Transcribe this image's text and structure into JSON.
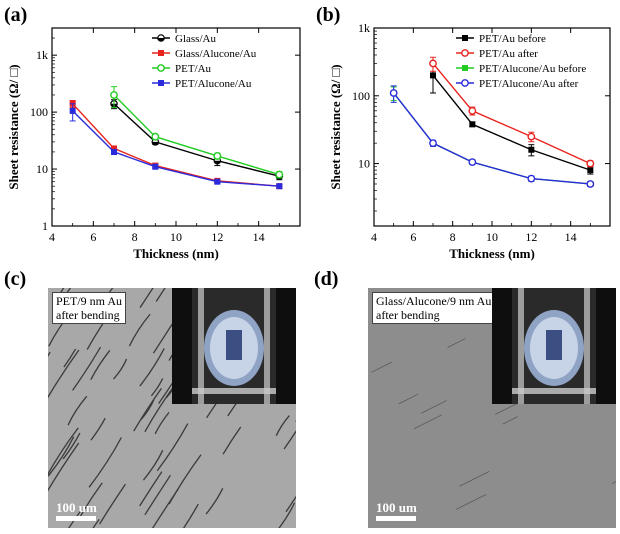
{
  "panels": {
    "a": "(a)",
    "b": "(b)",
    "c": "(c)",
    "d": "(d)"
  },
  "chart_data": [
    {
      "type": "line",
      "panel": "(a)",
      "title": "",
      "xlabel": "Thickness (nm)",
      "ylabel": "Sheet resistance (Ω/ □)",
      "yscale": "log",
      "xlim": [
        4,
        16
      ],
      "ylim": [
        1,
        3000
      ],
      "xticks": [
        4,
        6,
        8,
        10,
        12,
        14
      ],
      "yticks": [
        {
          "v": 1,
          "label": "1"
        },
        {
          "v": 10,
          "label": "10"
        },
        {
          "v": 100,
          "label": "100"
        },
        {
          "v": 1000,
          "label": "1k"
        }
      ],
      "legend_position": "top-right",
      "series": [
        {
          "name": "Glass/Au",
          "color": "#000000",
          "marker": "half-circle",
          "x": [
            7,
            9,
            12,
            15
          ],
          "y": [
            140,
            30,
            14,
            7.5
          ],
          "err": [
            25,
            3,
            2.5,
            1
          ]
        },
        {
          "name": "Glass/Alucone/Au",
          "color": "#e8231f",
          "marker": "square",
          "x": [
            5,
            7,
            9,
            12,
            15
          ],
          "y": [
            140,
            23,
            11.5,
            6.2,
            5
          ],
          "err": [
            20,
            2,
            1,
            0.4,
            0.4
          ]
        },
        {
          "name": "PET/Au",
          "color": "#22cc22",
          "marker": "circle-open",
          "x": [
            7,
            9,
            12,
            15
          ],
          "y": [
            200,
            37,
            17,
            8
          ],
          "err": [
            80,
            4,
            2,
            1
          ]
        },
        {
          "name": "PET/Alucone/Au",
          "color": "#2b2bdb",
          "marker": "square",
          "x": [
            5,
            7,
            9,
            12,
            15
          ],
          "y": [
            105,
            20,
            11,
            6,
            5
          ],
          "err": [
            35,
            2,
            1,
            0.4,
            0.4
          ]
        }
      ]
    },
    {
      "type": "line",
      "panel": "(b)",
      "title": "",
      "xlabel": "Thickness (nm)",
      "ylabel": "Sheet resistance (Ω/ □)",
      "yscale": "log",
      "xlim": [
        4,
        16
      ],
      "ylim": [
        1.2,
        1000
      ],
      "xticks": [
        4,
        6,
        8,
        10,
        12,
        14
      ],
      "yticks": [
        {
          "v": 10,
          "label": "10"
        },
        {
          "v": 100,
          "label": "100"
        },
        {
          "v": 1000,
          "label": "1k"
        }
      ],
      "legend_position": "top-right",
      "series": [
        {
          "name": "PET/Au  before",
          "color": "#000000",
          "marker": "square",
          "x": [
            7,
            9,
            12,
            15
          ],
          "y": [
            200,
            38,
            16,
            8
          ],
          "err": [
            90,
            3,
            3,
            1
          ]
        },
        {
          "name": "PET/Au  after",
          "color": "#e8231f",
          "marker": "circle-open",
          "x": [
            7,
            9,
            12,
            15
          ],
          "y": [
            300,
            60,
            25,
            10
          ],
          "err": [
            70,
            8,
            4,
            1
          ]
        },
        {
          "name": "PET/Alucone/Au  before",
          "color": "#22cc22",
          "marker": "square",
          "x": [
            5,
            7,
            9,
            12,
            15
          ],
          "y": [
            110,
            20,
            10.5,
            6,
            5
          ],
          "err": [
            25,
            2,
            0.6,
            0.5,
            0.4
          ]
        },
        {
          "name": "PET/Alucone/Au  after",
          "color": "#2b2bdb",
          "marker": "circle-open",
          "x": [
            5,
            7,
            9,
            12,
            15
          ],
          "y": [
            110,
            20,
            10.5,
            6,
            5
          ],
          "err": [
            30,
            2,
            0.6,
            0.5,
            0.4
          ]
        }
      ]
    }
  ],
  "photos": {
    "c": {
      "caption_line1": "PET/9 nm Au",
      "caption_line2": "after bending",
      "scale_label": "100 um",
      "background": "#a9a9a9"
    },
    "d": {
      "caption_line1": "Glass/Alucone/9 nm Au",
      "caption_line2": "after bending",
      "scale_label": "100 um",
      "background": "#8e8e8e"
    }
  }
}
